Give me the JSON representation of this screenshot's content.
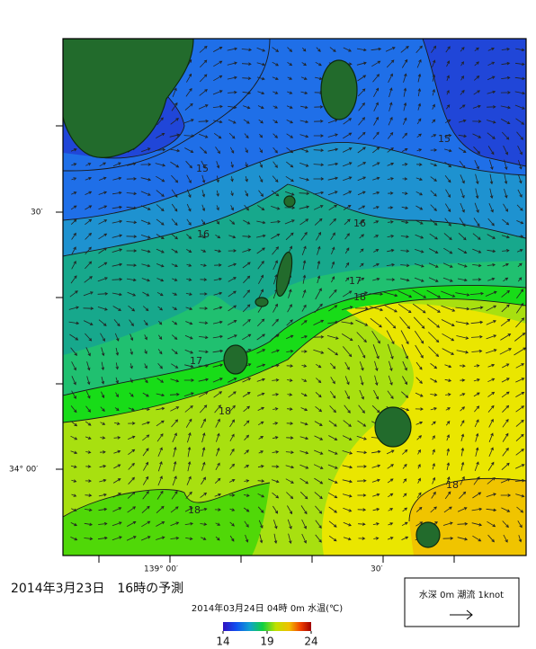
{
  "title": "2014年3月23日　16時の予測",
  "map": {
    "subtitle": "2014年03月24日 04時 0m 水温(℃)",
    "y_axis_labels": [
      "30′",
      "34° 00′"
    ],
    "x_axis_labels": [
      "139° 00′",
      "30′"
    ],
    "contour_labels": [
      "15",
      "15",
      "16",
      "16",
      "17",
      "17",
      "18",
      "18",
      "18",
      "18"
    ],
    "colorbar": {
      "range": [
        14,
        24
      ],
      "ticks": [
        14,
        19,
        24
      ]
    },
    "legend": "水深 0m 潮流 1knot"
  }
}
